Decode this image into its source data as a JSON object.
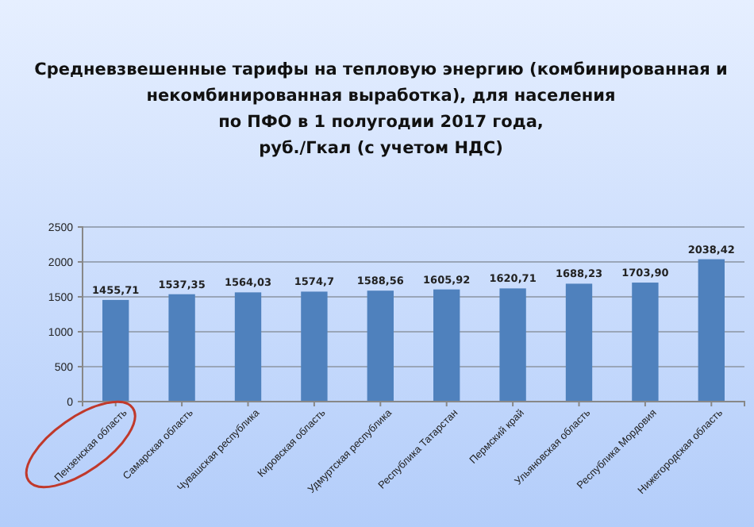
{
  "chart_data": {
    "type": "bar",
    "title": "Средневзвешенные тарифы на тепловую энергию (комбинированная и\nнекомбинированная выработка), для населения\nпо ПФО в 1 полугодии 2017 года,\nруб./Гкал (с учетом НДС)",
    "categories": [
      "Пензенская область",
      "Самарская область",
      "Чувашская республика",
      "Кировская область",
      "Удмуртская республика",
      "Республика Татарстан",
      "Пермский край",
      "Ульяновская область",
      "Республика Мордовия",
      "Нижегородская область"
    ],
    "values": [
      1455.71,
      1537.35,
      1564.03,
      1574.7,
      1588.56,
      1605.92,
      1620.71,
      1688.23,
      1703.9,
      2038.42
    ],
    "value_labels": [
      "1455,71",
      "1537,35",
      "1564,03",
      "1574,7",
      "1588,56",
      "1605,92",
      "1620,71",
      "1688,23",
      "1703,90",
      "2038,42"
    ],
    "color": "#4f81bd",
    "ylim": [
      0,
      2500
    ],
    "yticks": [
      0,
      500,
      1000,
      1500,
      2000,
      2500
    ],
    "grid": "y"
  }
}
